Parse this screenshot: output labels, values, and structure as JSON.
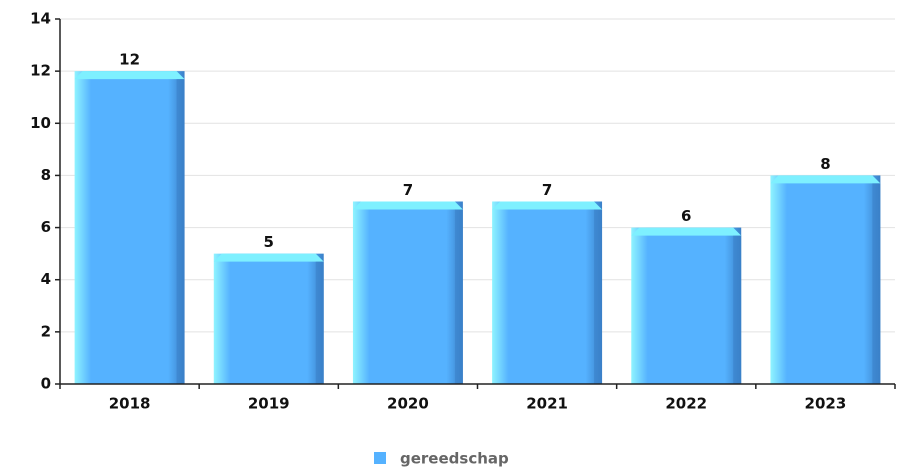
{
  "chart_data": {
    "type": "bar",
    "categories": [
      "2018",
      "2019",
      "2020",
      "2021",
      "2022",
      "2023"
    ],
    "series": [
      {
        "name": "gereedschap",
        "color": "#55b2ff",
        "values": [
          12,
          5,
          7,
          7,
          6,
          8
        ]
      }
    ],
    "ylim": [
      0,
      14
    ],
    "yticks": [
      0,
      2,
      4,
      6,
      8,
      10,
      12,
      14
    ],
    "grid": true,
    "legend": "bottom"
  }
}
